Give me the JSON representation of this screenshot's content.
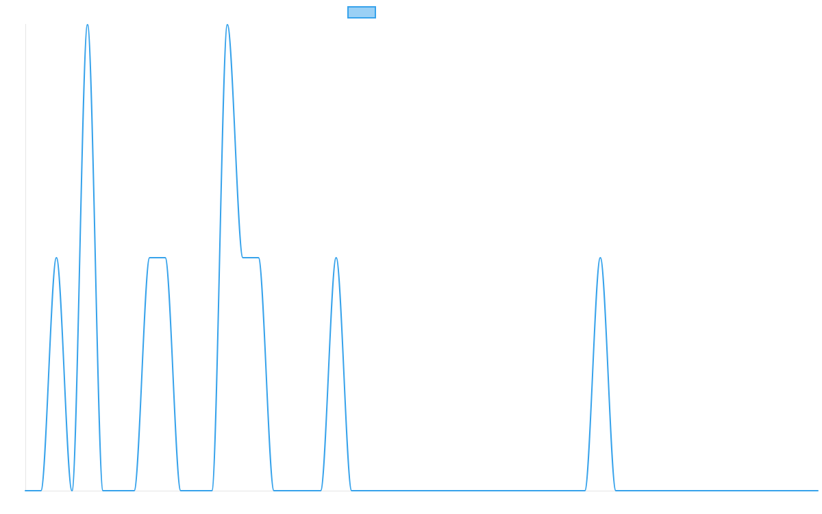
{
  "chart_data": {
    "type": "line",
    "title": "",
    "xlabel": "",
    "ylabel": "",
    "legend": "top-center",
    "grid": false,
    "x": [
      0,
      1,
      2,
      3,
      4,
      5,
      6,
      7,
      8,
      9,
      10,
      11,
      12,
      13,
      14,
      15,
      16,
      17,
      18,
      19,
      20,
      21,
      22,
      23,
      24,
      25,
      26,
      27,
      28,
      29,
      30,
      31,
      32,
      33,
      34,
      35,
      36,
      37,
      38,
      39,
      40,
      41,
      42,
      43,
      44,
      45,
      46,
      47,
      48,
      49,
      50,
      51
    ],
    "ylim": [
      0,
      2
    ],
    "series": [
      {
        "color_stroke": "#36a2eb",
        "color_fill": "#9ad0f5",
        "values": [
          0,
          0,
          1,
          0,
          2,
          0,
          0,
          0,
          1,
          1,
          0,
          0,
          0,
          2,
          1,
          1,
          0,
          0,
          0,
          0,
          1,
          0,
          0,
          0,
          0,
          0,
          0,
          0,
          0,
          0,
          0,
          0,
          0,
          0,
          0,
          0,
          0,
          1,
          0,
          0,
          0,
          0,
          0,
          0,
          0,
          0,
          0,
          0,
          0,
          0,
          0,
          0
        ]
      }
    ]
  }
}
